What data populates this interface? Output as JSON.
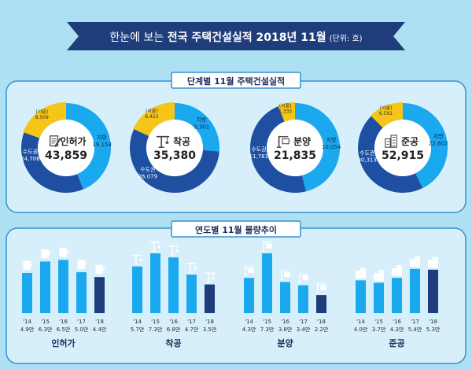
{
  "banner": {
    "prefix": "한눈에 보는 ",
    "bold": "전국 주택건설실적 2018년 11월",
    "unit": "(단위: 호)"
  },
  "section1": {
    "title": "단계별 11월 주택건설실적"
  },
  "section2": {
    "title": "연도별 11월 물량추이"
  },
  "colors": {
    "capital": "#1e4fa0",
    "provinces": "#1aa8ee",
    "seoul": "#f5c518",
    "bar_past": "#1aa8ee",
    "bar_current": "#1e3d7a",
    "banner": "#1e3d7a",
    "panel_border": "#3a8fd0"
  },
  "chart_data": [
    {
      "type": "pie",
      "center_label": "인허가",
      "center_value": "43,859",
      "icon": "document-pen-icon",
      "slices": [
        {
          "name": "수도권",
          "value": 24706,
          "label": "24,706"
        },
        {
          "name": "지방",
          "value": 19153,
          "label": "19,153"
        }
      ],
      "seoul": {
        "name": "(서울)",
        "value": 8509,
        "label": "8,509"
      }
    },
    {
      "type": "pie",
      "center_label": "착공",
      "center_value": "35,380",
      "icon": "crane-icon",
      "slices": [
        {
          "name": "수도권",
          "value": 26079,
          "label": "26,079"
        },
        {
          "name": "지방",
          "value": 9301,
          "label": "9,301"
        }
      ],
      "seoul": {
        "name": "(서울)",
        "value": 6422,
        "label": "6,422"
      }
    },
    {
      "type": "pie",
      "center_label": "분양",
      "center_value": "21,835",
      "icon": "sale-sign-icon",
      "slices": [
        {
          "name": "수도권",
          "value": 11781,
          "label": "11,781"
        },
        {
          "name": "지방",
          "value": 10054,
          "label": "10,054"
        }
      ],
      "seoul": {
        "name": "(서울)",
        "value": 1335,
        "label": "1,335"
      }
    },
    {
      "type": "pie",
      "center_label": "준공",
      "center_value": "52,915",
      "icon": "apartment-icon",
      "slices": [
        {
          "name": "수도권",
          "value": 30313,
          "label": "30,313"
        },
        {
          "name": "지방",
          "value": 22602,
          "label": "22,602"
        }
      ],
      "seoul": {
        "name": "(서울)",
        "value": 6591,
        "label": "6,591"
      }
    },
    {
      "type": "bar",
      "name": "인허가",
      "icon": "document-pen-icon",
      "categories": [
        "'14",
        "'15",
        "'16",
        "'17",
        "'18"
      ],
      "values": [
        4.9,
        6.3,
        6.5,
        5.0,
        4.4
      ],
      "value_labels": [
        "4.9만",
        "6.3만",
        "6.5만",
        "5.0만",
        "4.4만"
      ]
    },
    {
      "type": "bar",
      "name": "착공",
      "icon": "crane-icon",
      "categories": [
        "'14",
        "'15",
        "'16",
        "'17",
        "'18"
      ],
      "values": [
        5.7,
        7.3,
        6.8,
        4.7,
        3.5
      ],
      "value_labels": [
        "5.7만",
        "7.3만",
        "6.8만",
        "4.7만",
        "3.5만"
      ]
    },
    {
      "type": "bar",
      "name": "분양",
      "icon": "sale-sign-icon",
      "categories": [
        "'14",
        "'15",
        "'16",
        "'17",
        "'18"
      ],
      "values": [
        4.3,
        7.3,
        3.8,
        3.4,
        2.2
      ],
      "value_labels": [
        "4.3만",
        "7.3만",
        "3.8만",
        "3.4만",
        "2.2만"
      ]
    },
    {
      "type": "bar",
      "name": "준공",
      "icon": "apartment-icon",
      "categories": [
        "'14",
        "'15",
        "'16",
        "'17",
        "'18"
      ],
      "values": [
        4.0,
        3.7,
        4.3,
        5.4,
        5.3
      ],
      "value_labels": [
        "4.0만",
        "3.7만",
        "4.3만",
        "5.4만",
        "5.3만"
      ]
    }
  ]
}
